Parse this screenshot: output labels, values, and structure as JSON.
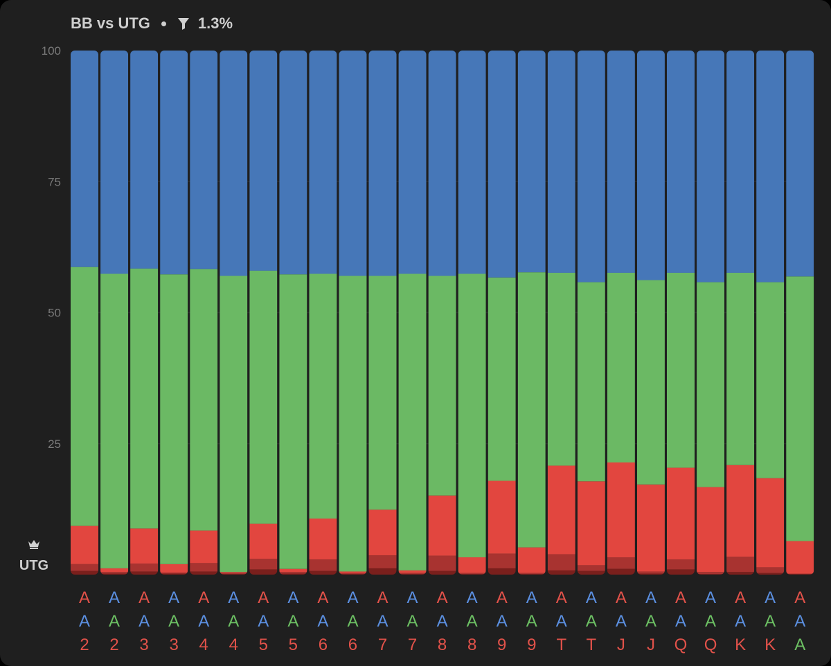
{
  "header": {
    "title": "BB vs UTG",
    "filter_value": "1.3%"
  },
  "ylabel": "UTG",
  "chart_data": {
    "type": "bar",
    "stacked": true,
    "ylim": [
      0,
      100
    ],
    "yticks": [
      100,
      75,
      50,
      25
    ],
    "grid": true,
    "categories": [
      [
        "A",
        "A",
        "2"
      ],
      [
        "A",
        "A",
        "2"
      ],
      [
        "A",
        "A",
        "3"
      ],
      [
        "A",
        "A",
        "3"
      ],
      [
        "A",
        "A",
        "4"
      ],
      [
        "A",
        "A",
        "4"
      ],
      [
        "A",
        "A",
        "5"
      ],
      [
        "A",
        "A",
        "5"
      ],
      [
        "A",
        "A",
        "6"
      ],
      [
        "A",
        "A",
        "6"
      ],
      [
        "A",
        "A",
        "7"
      ],
      [
        "A",
        "A",
        "7"
      ],
      [
        "A",
        "A",
        "8"
      ],
      [
        "A",
        "A",
        "8"
      ],
      [
        "A",
        "A",
        "9"
      ],
      [
        "A",
        "A",
        "9"
      ],
      [
        "A",
        "A",
        "T"
      ],
      [
        "A",
        "A",
        "T"
      ],
      [
        "A",
        "A",
        "J"
      ],
      [
        "A",
        "A",
        "J"
      ],
      [
        "A",
        "A",
        "Q"
      ],
      [
        "A",
        "A",
        "Q"
      ],
      [
        "A",
        "A",
        "K"
      ],
      [
        "A",
        "A",
        "K"
      ],
      [
        "A",
        "A",
        "A"
      ]
    ],
    "label_colors": [
      [
        "#e2524a",
        "#5b8fe0",
        "#e2524a"
      ],
      [
        "#5b8fe0",
        "#6cbf63",
        "#e2524a"
      ],
      [
        "#e2524a",
        "#5b8fe0",
        "#e2524a"
      ],
      [
        "#5b8fe0",
        "#6cbf63",
        "#e2524a"
      ],
      [
        "#e2524a",
        "#5b8fe0",
        "#e2524a"
      ],
      [
        "#5b8fe0",
        "#6cbf63",
        "#e2524a"
      ],
      [
        "#e2524a",
        "#5b8fe0",
        "#e2524a"
      ],
      [
        "#5b8fe0",
        "#6cbf63",
        "#e2524a"
      ],
      [
        "#e2524a",
        "#5b8fe0",
        "#e2524a"
      ],
      [
        "#5b8fe0",
        "#6cbf63",
        "#e2524a"
      ],
      [
        "#e2524a",
        "#5b8fe0",
        "#e2524a"
      ],
      [
        "#5b8fe0",
        "#6cbf63",
        "#e2524a"
      ],
      [
        "#e2524a",
        "#5b8fe0",
        "#e2524a"
      ],
      [
        "#5b8fe0",
        "#6cbf63",
        "#e2524a"
      ],
      [
        "#e2524a",
        "#5b8fe0",
        "#e2524a"
      ],
      [
        "#5b8fe0",
        "#6cbf63",
        "#e2524a"
      ],
      [
        "#e2524a",
        "#5b8fe0",
        "#e2524a"
      ],
      [
        "#5b8fe0",
        "#6cbf63",
        "#e2524a"
      ],
      [
        "#e2524a",
        "#5b8fe0",
        "#e2524a"
      ],
      [
        "#5b8fe0",
        "#6cbf63",
        "#e2524a"
      ],
      [
        "#e2524a",
        "#5b8fe0",
        "#e2524a"
      ],
      [
        "#5b8fe0",
        "#6cbf63",
        "#e2524a"
      ],
      [
        "#e2524a",
        "#5b8fe0",
        "#e2524a"
      ],
      [
        "#5b8fe0",
        "#6cbf63",
        "#e2524a"
      ],
      [
        "#e2524a",
        "#5b8fe0",
        "#6cbf63"
      ]
    ],
    "series": [
      {
        "color": "#7a1f1c",
        "values": [
          0.7,
          0.2,
          0.6,
          0.2,
          0.6,
          0.1,
          1.0,
          0.2,
          0.7,
          0.1,
          1.2,
          0.1,
          0.7,
          0.1,
          1.2,
          0.1,
          0.8,
          0.7,
          1.1,
          0.2,
          1.0,
          0.1,
          0.5,
          0.3,
          0.1
        ]
      },
      {
        "color": "#a83330",
        "values": [
          1.3,
          0.3,
          1.5,
          0.2,
          1.6,
          0.2,
          2.0,
          0.3,
          2.2,
          0.2,
          2.5,
          0.2,
          2.9,
          0.2,
          2.8,
          0.2,
          3.1,
          1.1,
          2.2,
          0.4,
          1.9,
          0.4,
          2.9,
          1.1,
          0.1
        ]
      },
      {
        "color": "#e2463f",
        "values": [
          7.3,
          0.7,
          6.7,
          1.6,
          6.2,
          0.2,
          6.7,
          0.6,
          7.8,
          0.3,
          8.7,
          0.5,
          11.5,
          3.0,
          13.9,
          4.9,
          16.9,
          16.0,
          18.1,
          16.6,
          17.5,
          16.2,
          17.5,
          17.0,
          6.2
        ]
      },
      {
        "color": "#6bb964",
        "values": [
          49.4,
          56.2,
          49.6,
          55.3,
          49.9,
          56.5,
          48.3,
          56.2,
          46.7,
          56.4,
          44.6,
          56.6,
          41.9,
          54.1,
          38.8,
          52.5,
          36.8,
          38.0,
          36.2,
          39.0,
          37.2,
          39.1,
          36.7,
          37.4,
          50.5
        ]
      },
      {
        "color": "#4677b8",
        "values": [
          41.3,
          42.6,
          41.6,
          42.7,
          41.7,
          43.0,
          42.0,
          42.7,
          42.6,
          43.0,
          43.0,
          42.6,
          43.0,
          42.6,
          43.3,
          42.3,
          42.4,
          44.2,
          42.4,
          43.8,
          42.4,
          44.2,
          42.4,
          44.2,
          43.1
        ]
      }
    ]
  }
}
